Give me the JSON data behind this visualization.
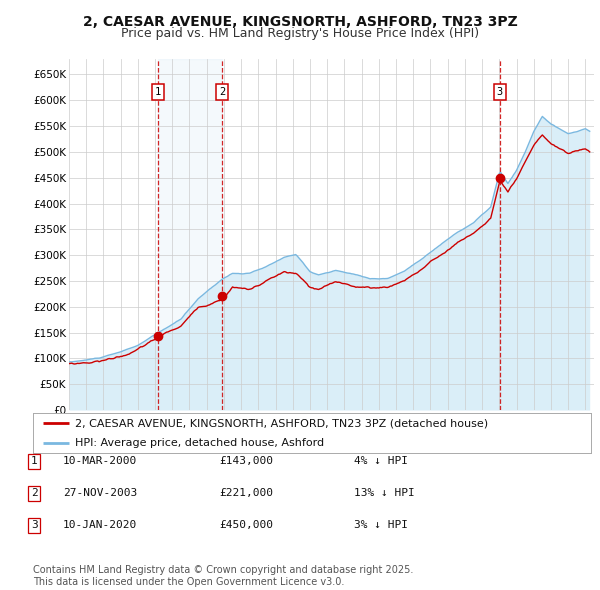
{
  "title": "2, CAESAR AVENUE, KINGSNORTH, ASHFORD, TN23 3PZ",
  "subtitle": "Price paid vs. HM Land Registry's House Price Index (HPI)",
  "background_color": "#ffffff",
  "plot_bg_color": "#ffffff",
  "grid_color": "#cccccc",
  "ylim": [
    0,
    680000
  ],
  "yticks": [
    0,
    50000,
    100000,
    150000,
    200000,
    250000,
    300000,
    350000,
    400000,
    450000,
    500000,
    550000,
    600000,
    650000
  ],
  "ytick_labels": [
    "£0",
    "£50K",
    "£100K",
    "£150K",
    "£200K",
    "£250K",
    "£300K",
    "£350K",
    "£400K",
    "£450K",
    "£500K",
    "£550K",
    "£600K",
    "£650K"
  ],
  "xlim_start": 1995.0,
  "xlim_end": 2025.5,
  "sale1_date": 2000.19,
  "sale1_price": 143000,
  "sale1_label": "1",
  "sale2_date": 2003.9,
  "sale2_price": 221000,
  "sale2_label": "2",
  "sale3_date": 2020.03,
  "sale3_price": 450000,
  "sale3_label": "3",
  "hpi_line_color": "#7ab8e0",
  "hpi_fill_color": "#daeef8",
  "price_line_color": "#cc0000",
  "sale_marker_color": "#cc0000",
  "vline_color": "#cc0000",
  "legend_text_1": "2, CAESAR AVENUE, KINGSNORTH, ASHFORD, TN23 3PZ (detached house)",
  "legend_text_2": "HPI: Average price, detached house, Ashford",
  "table_entries": [
    {
      "num": "1",
      "date": "10-MAR-2000",
      "price": "£143,000",
      "rel": "4% ↓ HPI"
    },
    {
      "num": "2",
      "date": "27-NOV-2003",
      "price": "£221,000",
      "rel": "13% ↓ HPI"
    },
    {
      "num": "3",
      "date": "10-JAN-2020",
      "price": "£450,000",
      "rel": "3% ↓ HPI"
    }
  ],
  "footer": "Contains HM Land Registry data © Crown copyright and database right 2025.\nThis data is licensed under the Open Government Licence v3.0.",
  "title_fontsize": 10,
  "subtitle_fontsize": 9,
  "tick_fontsize": 7.5,
  "legend_fontsize": 8,
  "table_fontsize": 8,
  "footer_fontsize": 7
}
